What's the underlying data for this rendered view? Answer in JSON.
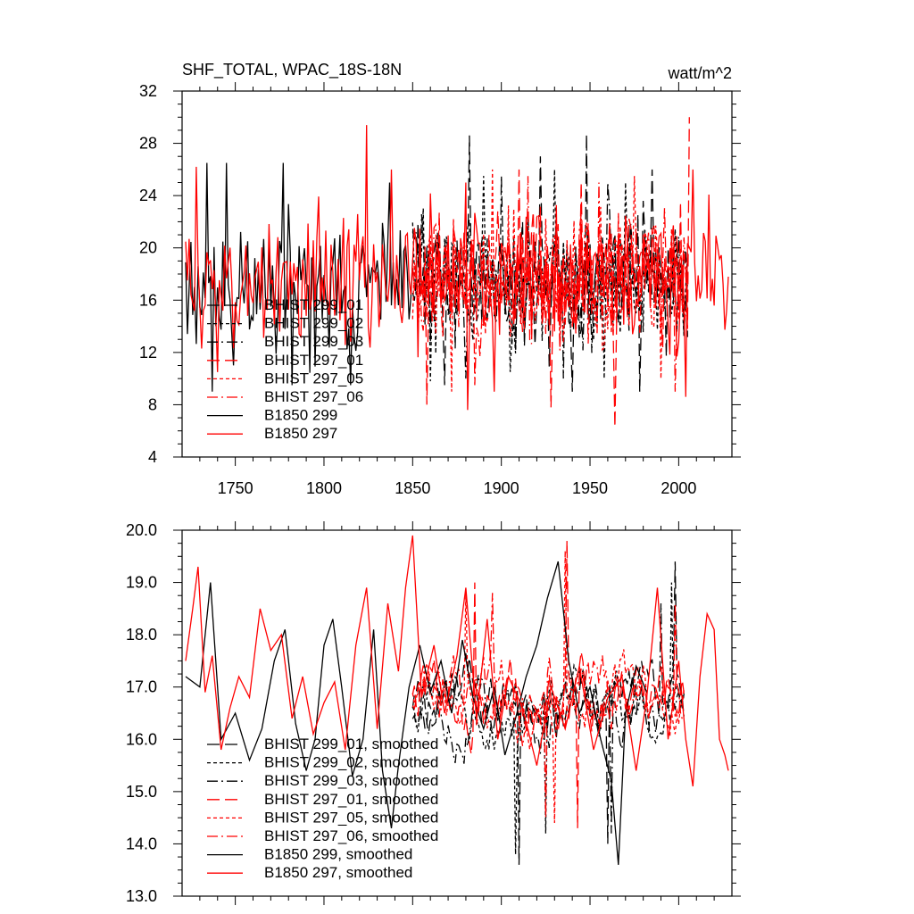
{
  "header": {
    "title": "SHF_TOTAL, WPAC_18S-18N",
    "units": "watt/m^2"
  },
  "colors": {
    "black": "#000000",
    "red": "#ff0000"
  },
  "chart_data": [
    {
      "type": "line",
      "panel": "top",
      "xlim": [
        1720,
        2030
      ],
      "ylim": [
        4,
        32
      ],
      "x_ticks": [
        "1750",
        "1800",
        "1850",
        "1900",
        "1950",
        "2000"
      ],
      "y_ticks": [
        "4",
        "8",
        "12",
        "16",
        "20",
        "24",
        "28",
        "32"
      ],
      "legend_position": "lower-left",
      "series": [
        {
          "name": "BHIST 299_01",
          "color": "#000000",
          "dash": "long-dash",
          "x_start": 1850,
          "x_end": 2005,
          "seed": 11,
          "mean": 17.5,
          "amp": 4.2,
          "peaks": [
            [
              1882,
              28.6
            ],
            [
              1922,
              27.0
            ],
            [
              1948,
              28.7
            ],
            [
              1985,
              26.0
            ]
          ],
          "troughs": [
            [
              1868,
              9.5
            ],
            [
              1940,
              9.0
            ],
            [
              1978,
              9.0
            ]
          ]
        },
        {
          "name": "BHIST 299_02",
          "color": "#000000",
          "dash": "short-dash",
          "x_start": 1850,
          "x_end": 2005,
          "seed": 23,
          "mean": 17.5,
          "amp": 4.0,
          "peaks": [
            [
              1890,
              25.5
            ],
            [
              1930,
              26.0
            ],
            [
              1970,
              25.0
            ]
          ],
          "troughs": [
            [
              1860,
              9.8
            ],
            [
              1905,
              10.5
            ],
            [
              1958,
              10.0
            ]
          ]
        },
        {
          "name": "BHIST 299_03",
          "color": "#000000",
          "dash": "dash-dot",
          "x_start": 1850,
          "x_end": 2005,
          "seed": 37,
          "mean": 17.5,
          "amp": 4.0,
          "peaks": [
            [
              1900,
              25.5
            ],
            [
              1960,
              25.0
            ]
          ],
          "troughs": [
            [
              1880,
              10.0
            ],
            [
              1935,
              10.0
            ]
          ]
        },
        {
          "name": "BHIST 297_01",
          "color": "#ff0000",
          "dash": "long-dash",
          "x_start": 1850,
          "x_end": 2006,
          "seed": 41,
          "mean": 17.5,
          "amp": 4.2,
          "peaks": [
            [
              1910,
              26.0
            ],
            [
              1945,
              25.0
            ],
            [
              2006,
              30.0
            ]
          ],
          "troughs": [
            [
              1858,
              8.0
            ],
            [
              1928,
              7.8
            ],
            [
              1964,
              6.3
            ]
          ]
        },
        {
          "name": "BHIST 297_05",
          "color": "#ff0000",
          "dash": "short-dash",
          "x_start": 1850,
          "x_end": 2005,
          "seed": 53,
          "mean": 17.5,
          "amp": 4.0,
          "peaks": [
            [
              1895,
              26.0
            ],
            [
              1975,
              25.5
            ]
          ],
          "troughs": [
            [
              1872,
              9.0
            ],
            [
              1990,
              10.0
            ]
          ]
        },
        {
          "name": "BHIST 297_06",
          "color": "#ff0000",
          "dash": "dash-dot",
          "x_start": 1850,
          "x_end": 2005,
          "seed": 67,
          "mean": 17.5,
          "amp": 4.0,
          "peaks": [
            [
              1915,
              25.5
            ],
            [
              1955,
              25.0
            ]
          ],
          "troughs": [
            [
              1885,
              9.5
            ],
            [
              1998,
              9.0
            ]
          ]
        },
        {
          "name": "B1850 299",
          "color": "#000000",
          "dash": "solid",
          "x_start": 1722,
          "x_end": 1850,
          "seed": 79,
          "mean": 17.0,
          "amp": 4.5,
          "peaks": [
            [
              1734,
              26.5
            ],
            [
              1745,
              26.5
            ],
            [
              1777,
              26.5
            ],
            [
              1837,
              25.0
            ]
          ],
          "troughs": [
            [
              1737,
              9.0
            ],
            [
              1782,
              9.5
            ],
            [
              1815,
              9.5
            ]
          ]
        },
        {
          "name": "B1850 297",
          "color": "#ff0000",
          "dash": "solid",
          "x_start": 1722,
          "x_end": 2028,
          "seed": 97,
          "mean": 17.5,
          "amp": 4.3,
          "peaks": [
            [
              1728,
              26.2
            ],
            [
              1824,
              29.4
            ],
            [
              1838,
              26.0
            ],
            [
              1880,
              25.0
            ],
            [
              2008,
              26.0
            ]
          ],
          "troughs": [
            [
              1740,
              10.5
            ],
            [
              1881,
              7.6
            ],
            [
              1896,
              9.0
            ],
            [
              2004,
              8.6
            ]
          ]
        }
      ]
    },
    {
      "type": "line",
      "panel": "bottom",
      "xlim": [
        1720,
        2030
      ],
      "ylim": [
        13.0,
        20.0
      ],
      "x_ticks": [],
      "y_ticks": [
        "13.0",
        "14.0",
        "15.0",
        "16.0",
        "17.0",
        "18.0",
        "19.0",
        "20.0"
      ],
      "legend_position": "lower-left",
      "series": [
        {
          "name": "BHIST 299_01, smoothed",
          "color": "#000000",
          "dash": "long-dash",
          "x_start": 1850,
          "x_end": 2003,
          "seed": 111,
          "mean": 16.6,
          "amp": 0.85,
          "peaks": [
            [
              1998,
              19.4
            ]
          ],
          "troughs": [
            [
              1910,
              13.6
            ],
            [
              1960,
              14.0
            ]
          ]
        },
        {
          "name": "BHIST 299_02, smoothed",
          "color": "#000000",
          "dash": "short-dash",
          "x_start": 1850,
          "x_end": 2003,
          "seed": 123,
          "mean": 16.6,
          "amp": 0.85,
          "peaks": [
            [
              1996,
              19.0
            ]
          ],
          "troughs": [
            [
              1908,
              13.8
            ],
            [
              1925,
              14.2
            ]
          ]
        },
        {
          "name": "BHIST 299_03, smoothed",
          "color": "#000000",
          "dash": "dash-dot",
          "x_start": 1850,
          "x_end": 2003,
          "seed": 137,
          "mean": 16.6,
          "amp": 0.85,
          "peaks": [
            [
              1990,
              18.6
            ]
          ],
          "troughs": [
            [
              1962,
              14.2
            ]
          ]
        },
        {
          "name": "BHIST 297_01, smoothed",
          "color": "#ff0000",
          "dash": "long-dash",
          "x_start": 1850,
          "x_end": 2003,
          "seed": 141,
          "mean": 16.8,
          "amp": 0.9,
          "peaks": [
            [
              1937,
              19.8
            ],
            [
              1885,
              19.0
            ]
          ],
          "troughs": [
            [
              1943,
              14.3
            ]
          ]
        },
        {
          "name": "BHIST 297_05, smoothed",
          "color": "#ff0000",
          "dash": "short-dash",
          "x_start": 1850,
          "x_end": 2003,
          "seed": 153,
          "mean": 16.8,
          "amp": 0.9,
          "peaks": [
            [
              1936,
              19.6
            ],
            [
              1880,
              18.8
            ]
          ],
          "troughs": [
            [
              1930,
              14.4
            ]
          ]
        },
        {
          "name": "BHIST 297_06, smoothed",
          "color": "#ff0000",
          "dash": "dash-dot",
          "x_start": 1850,
          "x_end": 2003,
          "seed": 167,
          "mean": 16.8,
          "amp": 0.9,
          "peaks": [
            [
              1895,
              18.8
            ],
            [
              1998,
              18.6
            ]
          ],
          "troughs": [
            [
              1925,
              14.5
            ]
          ]
        },
        {
          "name": "B1850 299, smoothed",
          "color": "#000000",
          "dash": "solid",
          "x_start": 1722,
          "x_end": 1982,
          "seed": 179,
          "mean": 16.6,
          "amp": 0.9,
          "points": [
            [
              1722,
              17.2
            ],
            [
              1730,
              17.0
            ],
            [
              1736,
              19.0
            ],
            [
              1742,
              16.0
            ],
            [
              1750,
              16.5
            ],
            [
              1758,
              15.6
            ],
            [
              1765,
              16.2
            ],
            [
              1772,
              17.5
            ],
            [
              1778,
              18.1
            ],
            [
              1784,
              16.3
            ],
            [
              1790,
              15.4
            ],
            [
              1795,
              16.0
            ],
            [
              1800,
              17.8
            ],
            [
              1805,
              18.3
            ],
            [
              1810,
              17.0
            ],
            [
              1816,
              15.3
            ],
            [
              1822,
              16.0
            ],
            [
              1828,
              18.1
            ],
            [
              1833,
              15.4
            ],
            [
              1838,
              14.3
            ],
            [
              1842,
              15.5
            ],
            [
              1848,
              17.0
            ],
            [
              1854,
              17.8
            ],
            [
              1860,
              16.9
            ],
            [
              1866,
              17.5
            ],
            [
              1872,
              16.5
            ],
            [
              1878,
              17.9
            ],
            [
              1884,
              16.8
            ],
            [
              1890,
              16.2
            ],
            [
              1896,
              17.0
            ],
            [
              1902,
              15.7
            ],
            [
              1908,
              16.4
            ],
            [
              1914,
              17.2
            ],
            [
              1920,
              17.8
            ],
            [
              1926,
              18.7
            ],
            [
              1932,
              19.4
            ],
            [
              1938,
              17.5
            ],
            [
              1944,
              16.5
            ],
            [
              1950,
              17.0
            ],
            [
              1956,
              16.0
            ],
            [
              1962,
              15.2
            ],
            [
              1966,
              13.6
            ],
            [
              1970,
              16.5
            ],
            [
              1976,
              17.4
            ],
            [
              1982,
              16.9
            ]
          ]
        },
        {
          "name": "B1850 297, smoothed",
          "color": "#ff0000",
          "dash": "solid",
          "x_start": 1722,
          "x_end": 2028,
          "seed": 197,
          "mean": 16.9,
          "amp": 0.8,
          "points": [
            [
              1722,
              17.5
            ],
            [
              1726,
              18.5
            ],
            [
              1729,
              19.3
            ],
            [
              1733,
              16.9
            ],
            [
              1737,
              17.6
            ],
            [
              1742,
              15.8
            ],
            [
              1747,
              16.6
            ],
            [
              1752,
              17.2
            ],
            [
              1758,
              16.8
            ],
            [
              1764,
              18.5
            ],
            [
              1770,
              17.7
            ],
            [
              1776,
              18.0
            ],
            [
              1782,
              16.4
            ],
            [
              1788,
              17.2
            ],
            [
              1794,
              16.1
            ],
            [
              1800,
              16.7
            ],
            [
              1806,
              17.1
            ],
            [
              1812,
              15.8
            ],
            [
              1818,
              17.8
            ],
            [
              1824,
              18.9
            ],
            [
              1830,
              16.2
            ],
            [
              1836,
              18.6
            ],
            [
              1842,
              17.3
            ],
            [
              1846,
              18.9
            ],
            [
              1850,
              19.9
            ],
            [
              1855,
              16.8
            ],
            [
              1862,
              17.8
            ],
            [
              1868,
              16.5
            ],
            [
              1875,
              17.6
            ],
            [
              1880,
              18.9
            ],
            [
              1886,
              16.4
            ],
            [
              1892,
              18.3
            ],
            [
              1898,
              16.0
            ],
            [
              1904,
              17.2
            ],
            [
              1912,
              16.6
            ],
            [
              1920,
              15.5
            ],
            [
              1928,
              17.0
            ],
            [
              1936,
              16.2
            ],
            [
              1944,
              17.4
            ],
            [
              1952,
              15.8
            ],
            [
              1960,
              16.8
            ],
            [
              1968,
              17.2
            ],
            [
              1976,
              15.4
            ],
            [
              1982,
              16.8
            ],
            [
              1988,
              18.9
            ],
            [
              1994,
              16.0
            ],
            [
              2000,
              17.5
            ],
            [
              2004,
              16.0
            ],
            [
              2008,
              15.1
            ],
            [
              2012,
              17.2
            ],
            [
              2016,
              18.4
            ],
            [
              2020,
              18.1
            ],
            [
              2023,
              16.0
            ],
            [
              2026,
              15.7
            ],
            [
              2028,
              15.4
            ]
          ]
        }
      ]
    }
  ]
}
